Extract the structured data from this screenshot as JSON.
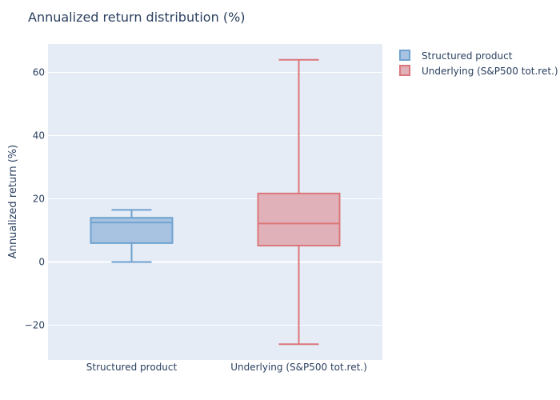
{
  "chart_data": {
    "type": "box",
    "title": "Annualized return distribution (%)",
    "ylabel": "Annualized return (%)",
    "xlabel": "",
    "ylim": [
      -31,
      69
    ],
    "yticks": [
      60,
      40,
      20,
      0,
      -20
    ],
    "ytick_labels": [
      "60",
      "40",
      "20",
      "0",
      "−20"
    ],
    "grid": true,
    "legend_position": "top-right",
    "categories": [
      "Structured product",
      "Underlying (S&P500 tot.ret.)"
    ],
    "series": [
      {
        "name": "Structured product",
        "min": 0,
        "q1": 6,
        "median": 12.5,
        "q3": 14,
        "max": 16.5,
        "fill": "#a7c3e1",
        "stroke": "#6fa2cf"
      },
      {
        "name": "Underlying (S&P500 tot.ret.)",
        "min": -26,
        "q1": 5.2,
        "median": 12.2,
        "q3": 21.7,
        "max": 64,
        "fill": "#e1b1ba",
        "stroke": "#db777a"
      }
    ]
  },
  "colors": {
    "plot_bg": "#e5ecf6",
    "grid": "#ffffff",
    "text": "#2a3f5f"
  }
}
